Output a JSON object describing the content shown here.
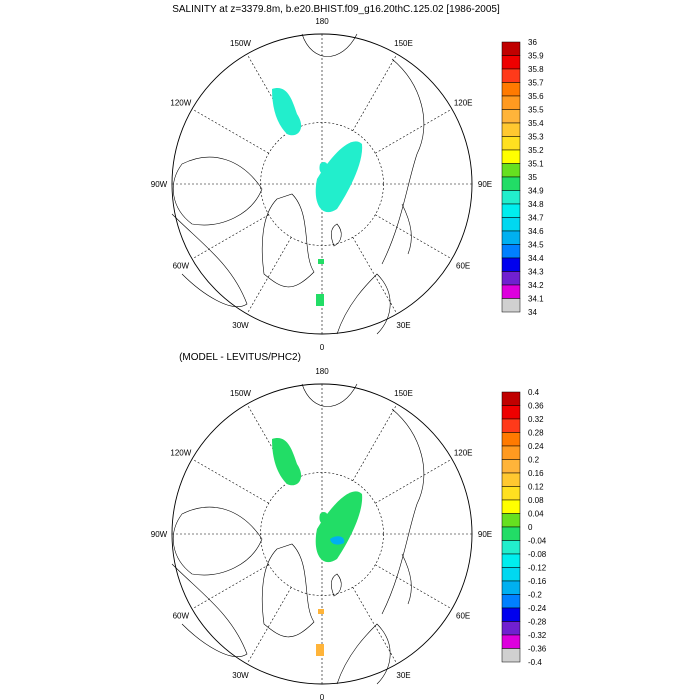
{
  "top_title": "SALINITY at z=3379.8m, b.e20.BHIST.f09_g16.20thC.125.02 [1986-2005]",
  "bottom_title": "(MODEL - LEVITUS/PHC2)",
  "longitude_labels": {
    "top": "180",
    "upper_left": "150W",
    "upper_right": "150E",
    "left_upper": "120W",
    "right_upper": "120E",
    "left": "90W",
    "right": "90E",
    "left_lower": "60W",
    "right_lower": "60E",
    "lower_left": "30W",
    "lower_right": "30E",
    "bottom": "0"
  },
  "colorbar_top": {
    "labels": [
      "36",
      "35.9",
      "35.8",
      "35.7",
      "35.6",
      "35.5",
      "35.4",
      "35.3",
      "35.2",
      "35.1",
      "35",
      "34.9",
      "34.8",
      "34.7",
      "34.6",
      "34.5",
      "34.4",
      "34.3",
      "34.2",
      "34.1",
      "34"
    ]
  },
  "colorbar_bottom": {
    "labels": [
      "0.4",
      "0.36",
      "0.32",
      "0.28",
      "0.24",
      "0.2",
      "0.16",
      "0.12",
      "0.08",
      "0.04",
      "0",
      "-0.04",
      "-0.08",
      "-0.12",
      "-0.16",
      "-0.2",
      "-0.24",
      "-0.28",
      "-0.32",
      "-0.36",
      "-0.4"
    ]
  },
  "colors": {
    "scale": [
      "#c00000",
      "#ee0000",
      "#ff3a1a",
      "#ff7a00",
      "#ff9a20",
      "#ffb43a",
      "#ffc830",
      "#ffe020",
      "#ffff00",
      "#66e020",
      "#22dd66",
      "#22eecc",
      "#00eeee",
      "#00d8f0",
      "#00b0f0",
      "#0080ff",
      "#0000ee",
      "#7020d0",
      "#dd00dd",
      "#d0d0d0",
      "#707070"
    ],
    "salinity_patch": "#22eecc",
    "diff_patch": "#22dd66",
    "diff_orange": "#ffb43a",
    "coast": "#000000"
  }
}
